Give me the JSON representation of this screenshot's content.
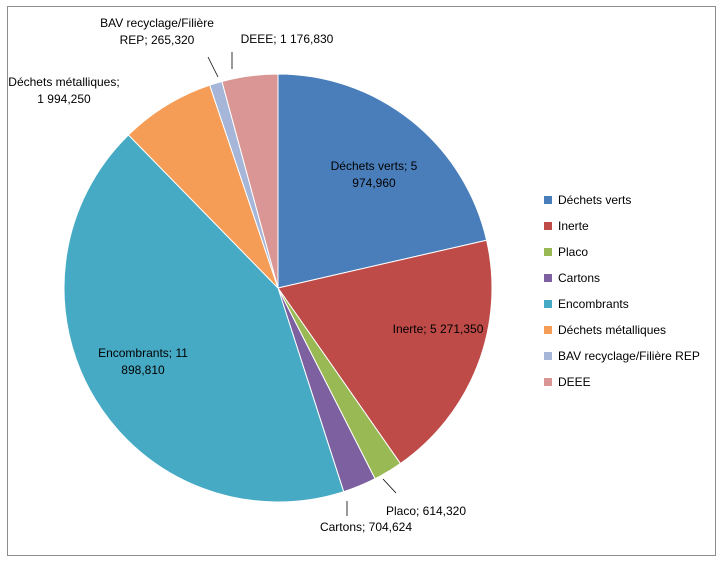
{
  "chart_data": {
    "type": "pie",
    "title": "",
    "legend_position": "right",
    "categories": [
      "Déchets verts",
      "Inerte",
      "Placo",
      "Cartons",
      "Encombrants",
      "Déchets métalliques",
      "BAV recyclage/Filière REP",
      "DEEE"
    ],
    "values": [
      5974.96,
      5271.35,
      614.32,
      704.624,
      11898.81,
      1994.25,
      265.32,
      1176.83
    ],
    "colors": [
      "#4a7ebb",
      "#be4b48",
      "#98b954",
      "#7d60a0",
      "#46aac5",
      "#f59d56",
      "#a5b6d9",
      "#d99694"
    ],
    "data_labels": [
      [
        "Déchets verts; 5",
        "974,960"
      ],
      [
        "Inerte; 5 271,350"
      ],
      [
        "Placo; 614,320"
      ],
      [
        "Cartons; 704,624"
      ],
      [
        "Encombrants; 11",
        "898,810"
      ],
      [
        "Déchets métalliques;",
        "1 994,250"
      ],
      [
        "BAV recyclage/Filière",
        "REP; 265,320"
      ],
      [
        "DEEE; 1 176,830"
      ]
    ]
  }
}
